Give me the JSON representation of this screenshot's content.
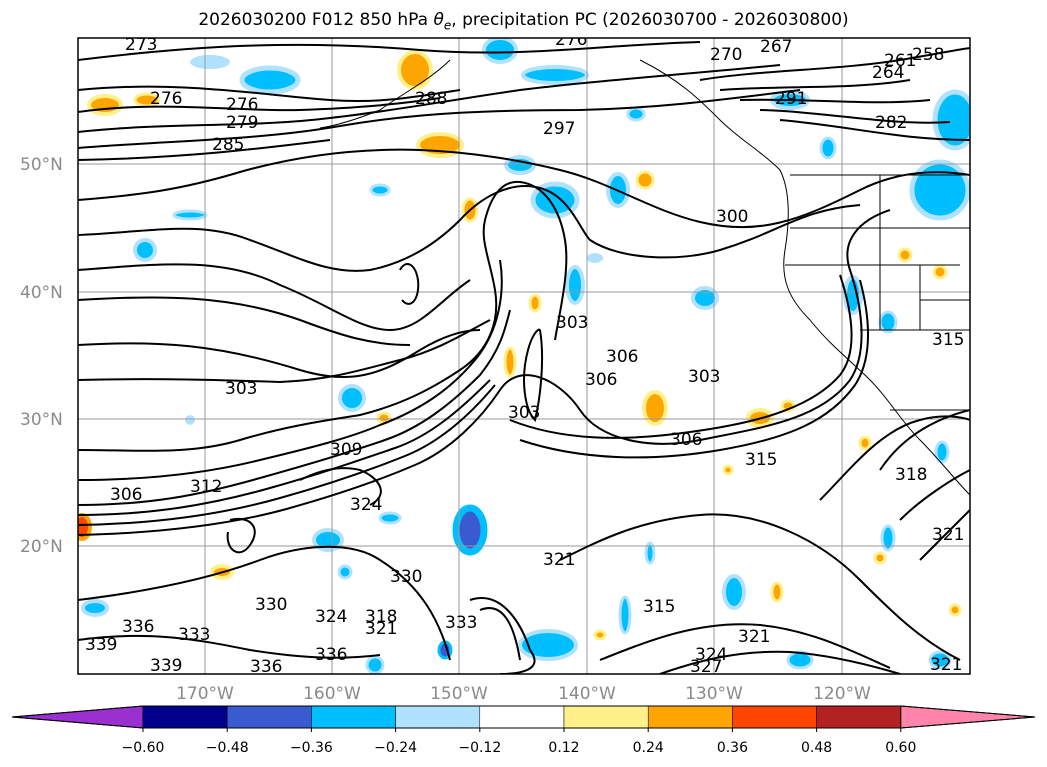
{
  "title": "2026030200 F012 850 hPa θe, precipitation PC (2026030700 - 2026030800)",
  "map": {
    "lon_ticks": [
      "170°W",
      "160°W",
      "150°W",
      "140°W",
      "130°W",
      "120°W"
    ],
    "lat_ticks": [
      "50°N",
      "40°N",
      "30°N",
      "20°N"
    ],
    "contour_labels": [
      "273",
      "276",
      "276",
      "279",
      "285",
      "288",
      "297",
      "276",
      "270",
      "267",
      "264",
      "261",
      "258",
      "282",
      "291",
      "300",
      "303",
      "303",
      "306",
      "306",
      "303",
      "303",
      "306",
      "309",
      "312",
      "306",
      "315",
      "318",
      "324",
      "321",
      "321",
      "330",
      "330",
      "336",
      "339",
      "339",
      "336",
      "336",
      "324",
      "318",
      "321",
      "333",
      "333",
      "315",
      "321",
      "324",
      "327",
      "321",
      "315"
    ]
  },
  "colorbar": {
    "ticks": [
      "−0.60",
      "−0.48",
      "−0.36",
      "−0.24",
      "−0.12",
      "0.12",
      "0.24",
      "0.36",
      "0.48",
      "0.60"
    ],
    "colors": [
      "#9b30d0",
      "#00008b",
      "#3a5bd0",
      "#00bfff",
      "#b0e2ff",
      "#ffffff",
      "#fff08a",
      "#ffa500",
      "#ff4500",
      "#b22222",
      "#ff86aa"
    ]
  }
}
